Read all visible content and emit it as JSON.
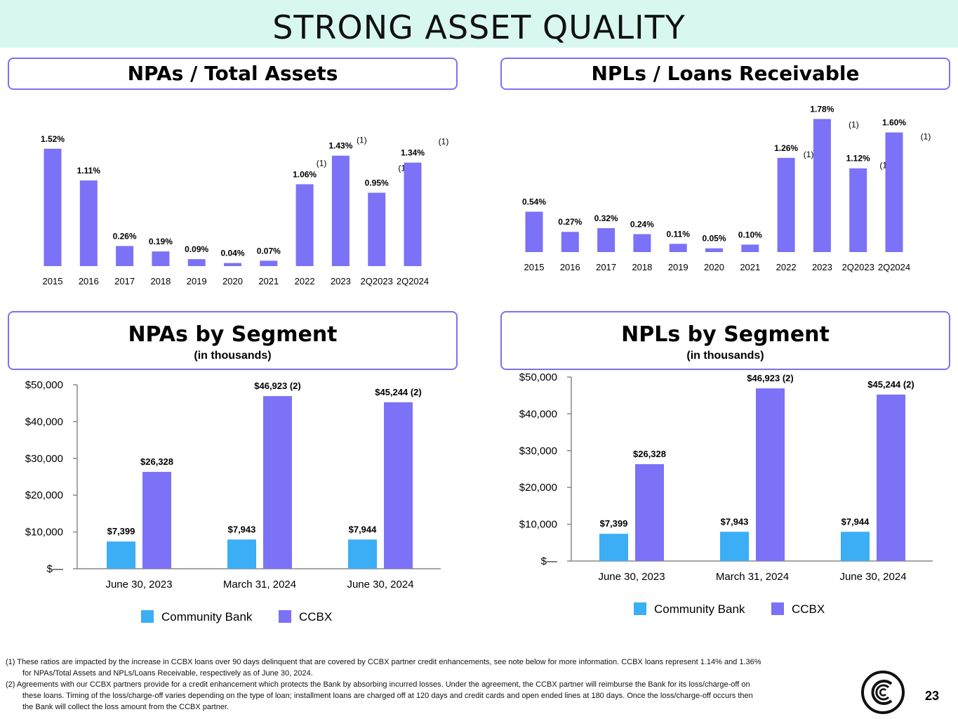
{
  "page": {
    "title": "STRONG ASSET QUALITY",
    "page_number": "23"
  },
  "colors": {
    "ccbx": "#7b72f7",
    "community_bank": "#3baef5",
    "accent_border": "#7b72f0",
    "title_band": "#d9f7f1"
  },
  "panels": {
    "npa_total_assets": {
      "title": "NPAs / Total Assets"
    },
    "npl_loans_receivable": {
      "title": "NPLs / Loans Receivable"
    },
    "npa_segment": {
      "title": "NPAs by Segment",
      "subtitle": "(in thousands)"
    },
    "npl_segment": {
      "title": "NPLs by Segment",
      "subtitle": "(in thousands)"
    }
  },
  "chart_data": [
    {
      "id": "npa_ratio",
      "type": "bar",
      "title": "NPAs / Total Assets",
      "categories": [
        "2015",
        "2016",
        "2017",
        "2018",
        "2019",
        "2020",
        "2021",
        "2022",
        "2023",
        "2Q2023",
        "2Q2024"
      ],
      "values": [
        1.52,
        1.11,
        0.26,
        0.19,
        0.09,
        0.04,
        0.07,
        1.06,
        1.43,
        0.95,
        1.34
      ],
      "labels": [
        "1.52%",
        "1.11%",
        "0.26%",
        "0.19%",
        "0.09%",
        "0.04%",
        "0.07%",
        "1.06%",
        "1.43%",
        "0.95%",
        "1.34%"
      ],
      "notes": [
        "",
        "",
        "",
        "",
        "",
        "",
        "",
        "(1)",
        "(1)",
        "(1)",
        "(1)"
      ],
      "ylim": [
        0,
        1.6
      ]
    },
    {
      "id": "npl_ratio",
      "type": "bar",
      "title": "NPLs / Loans Receivable",
      "categories": [
        "2015",
        "2016",
        "2017",
        "2018",
        "2019",
        "2020",
        "2021",
        "2022",
        "2023",
        "2Q2023",
        "2Q2024"
      ],
      "values": [
        0.54,
        0.27,
        0.32,
        0.24,
        0.11,
        0.05,
        0.1,
        1.26,
        1.78,
        1.12,
        1.6
      ],
      "labels": [
        "0.54%",
        "0.27%",
        "0.32%",
        "0.24%",
        "0.11%",
        "0.05%",
        "0.10%",
        "1.26%",
        "1.78%",
        "1.12%",
        "1.60%"
      ],
      "notes": [
        "",
        "",
        "",
        "",
        "",
        "",
        "",
        "(1)",
        "(1)",
        "(1)",
        "(1)"
      ],
      "ylim": [
        0,
        1.85
      ]
    },
    {
      "id": "npa_segment",
      "type": "bar",
      "title": "NPAs by Segment",
      "subtitle": "(in thousands)",
      "categories": [
        "June 30, 2023",
        "March 31, 2024",
        "June 30, 2024"
      ],
      "series": [
        {
          "name": "Community Bank",
          "values": [
            7399,
            7943,
            7944
          ],
          "labels": [
            "$7,399",
            "$7,943",
            "$7,944"
          ]
        },
        {
          "name": "CCBX",
          "values": [
            26328,
            46923,
            45244
          ],
          "labels": [
            "$26,328",
            "$46,923 (2)",
            "$45,244 (2)"
          ]
        }
      ],
      "ylim": [
        0,
        50000
      ],
      "yticks": [
        0,
        10000,
        20000,
        30000,
        40000,
        50000
      ],
      "ytick_labels": [
        "$—",
        "$10,000",
        "$20,000",
        "$30,000",
        "$40,000",
        "$50,000"
      ],
      "legend": "bottom"
    },
    {
      "id": "npl_segment",
      "type": "bar",
      "title": "NPLs by Segment",
      "subtitle": "(in thousands)",
      "categories": [
        "June 30, 2023",
        "March 31, 2024",
        "June 30, 2024"
      ],
      "series": [
        {
          "name": "Community Bank",
          "values": [
            7399,
            7943,
            7944
          ],
          "labels": [
            "$7,399",
            "$7,943",
            "$7,944"
          ]
        },
        {
          "name": "CCBX",
          "values": [
            26328,
            46923,
            45244
          ],
          "labels": [
            "$26,328",
            "$46,923 (2)",
            "$45,244 (2)"
          ]
        }
      ],
      "ylim": [
        0,
        50000
      ],
      "yticks": [
        0,
        10000,
        20000,
        30000,
        40000,
        50000
      ],
      "ytick_labels": [
        "$—",
        "$10,000",
        "$20,000",
        "$30,000",
        "$40,000",
        "$50,000"
      ],
      "legend": "bottom"
    }
  ],
  "footnotes": [
    "(1) These ratios are impacted by the increase in CCBX loans over 90 days delinquent that are covered by CCBX partner credit enhancements, see note below for more information. CCBX loans represent 1.14% and 1.36% for NPAs/Total Assets and NPLs/Loans Receivable, respectively as of June 30, 2024.",
    "(2)  Agreements with our CCBX partners provide for a credit enhancement which protects the Bank by absorbing incurred losses. Under the agreement, the CCBX partner will reimburse the Bank for its loss/charge-off on these loans.  Timing of the loss/charge-off varies depending on the type of loan; installment loans are charged off at 120 days and credit cards and open ended lines at 180 days. Once the loss/charge-off occurs then the Bank will collect the loss amount from the CCBX partner."
  ]
}
